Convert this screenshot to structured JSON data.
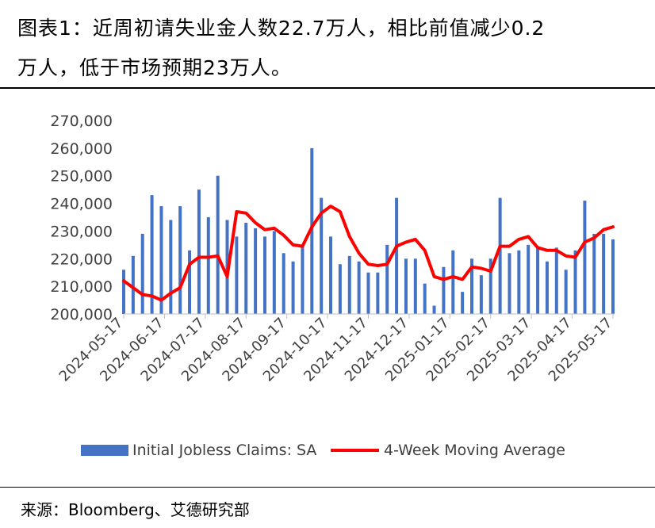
{
  "title": {
    "line1": "图表1：近周初请失业金人数22.7万人，相比前值减少0.2",
    "line2": "万人，低于市场预期23万人。"
  },
  "source": "来源：Bloomberg、艾德研究部",
  "chart_data": {
    "type": "bar+line",
    "title": "",
    "xlabel": "",
    "ylabel": "",
    "ylim": [
      200000,
      270000
    ],
    "yticks": [
      "200,000",
      "210,000",
      "220,000",
      "230,000",
      "240,000",
      "250,000",
      "260,000",
      "270,000"
    ],
    "xticks": [
      "2024-05-17",
      "2024-06-17",
      "2024-07-17",
      "2024-08-17",
      "2024-09-17",
      "2024-10-17",
      "2024-11-17",
      "2024-12-17",
      "2025-01-17",
      "2025-02-17",
      "2025-03-17",
      "2025-04-17",
      "2025-05-17"
    ],
    "legend_position": "bottom",
    "series": [
      {
        "name": "Initial Jobless Claims: SA",
        "kind": "bar",
        "color": "#4472C4",
        "values": [
          216000,
          221000,
          229000,
          243000,
          239000,
          234000,
          239000,
          223000,
          245000,
          235000,
          250000,
          234000,
          228000,
          233000,
          231000,
          228000,
          230000,
          222000,
          219000,
          225000,
          260000,
          242000,
          228000,
          218000,
          221000,
          219000,
          215000,
          215000,
          225000,
          242000,
          220000,
          220000,
          211000,
          203000,
          217000,
          223000,
          208000,
          220000,
          214000,
          220000,
          242000,
          222000,
          223000,
          225000,
          224000,
          219000,
          224000,
          216000,
          223000,
          241000,
          229000,
          229000,
          227000
        ]
      },
      {
        "name": "4-Week Moving Average",
        "kind": "line",
        "color": "#FF0000",
        "values": [
          212000,
          209500,
          207000,
          206500,
          205000,
          207500,
          209500,
          218000,
          220500,
          220500,
          221000,
          213500,
          237000,
          236500,
          233000,
          230500,
          231000,
          228500,
          225000,
          224500,
          231500,
          236500,
          239000,
          237000,
          228000,
          222000,
          218000,
          217500,
          218000,
          224500,
          226000,
          227000,
          223000,
          213500,
          212500,
          213500,
          212500,
          217000,
          216500,
          215500,
          224500,
          224500,
          227000,
          228000,
          224000,
          223000,
          223000,
          221000,
          220500,
          226000,
          227500,
          230500,
          231500
        ]
      }
    ]
  }
}
